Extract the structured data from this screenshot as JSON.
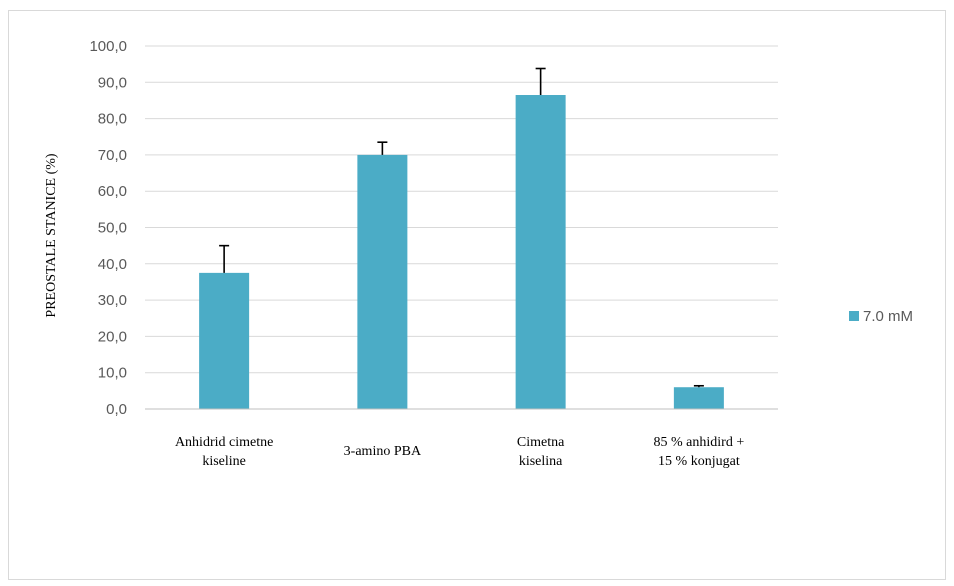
{
  "chart_data": {
    "type": "bar",
    "categories": [
      [
        "Anhidrid cimetne",
        "kiseline"
      ],
      [
        "3-amino PBA"
      ],
      [
        "Cimetna",
        "kiselina"
      ],
      [
        "85 % anhidird +",
        "15 % konjugat"
      ]
    ],
    "series": [
      {
        "name": "7.0 mM",
        "color": "#4bacc6",
        "values": [
          37.5,
          70.0,
          86.5,
          6.0
        ],
        "errors": [
          7.5,
          3.5,
          7.3,
          0.4
        ]
      }
    ],
    "ylabel": "PREOSTALE STANICE (%)",
    "ylim": [
      0,
      100
    ],
    "yticks": [
      "0,0",
      "10,0",
      "20,0",
      "30,0",
      "40,0",
      "50,0",
      "60,0",
      "70,0",
      "80,0",
      "90,0",
      "100,0"
    ],
    "grid": true,
    "legend_position": "right"
  }
}
